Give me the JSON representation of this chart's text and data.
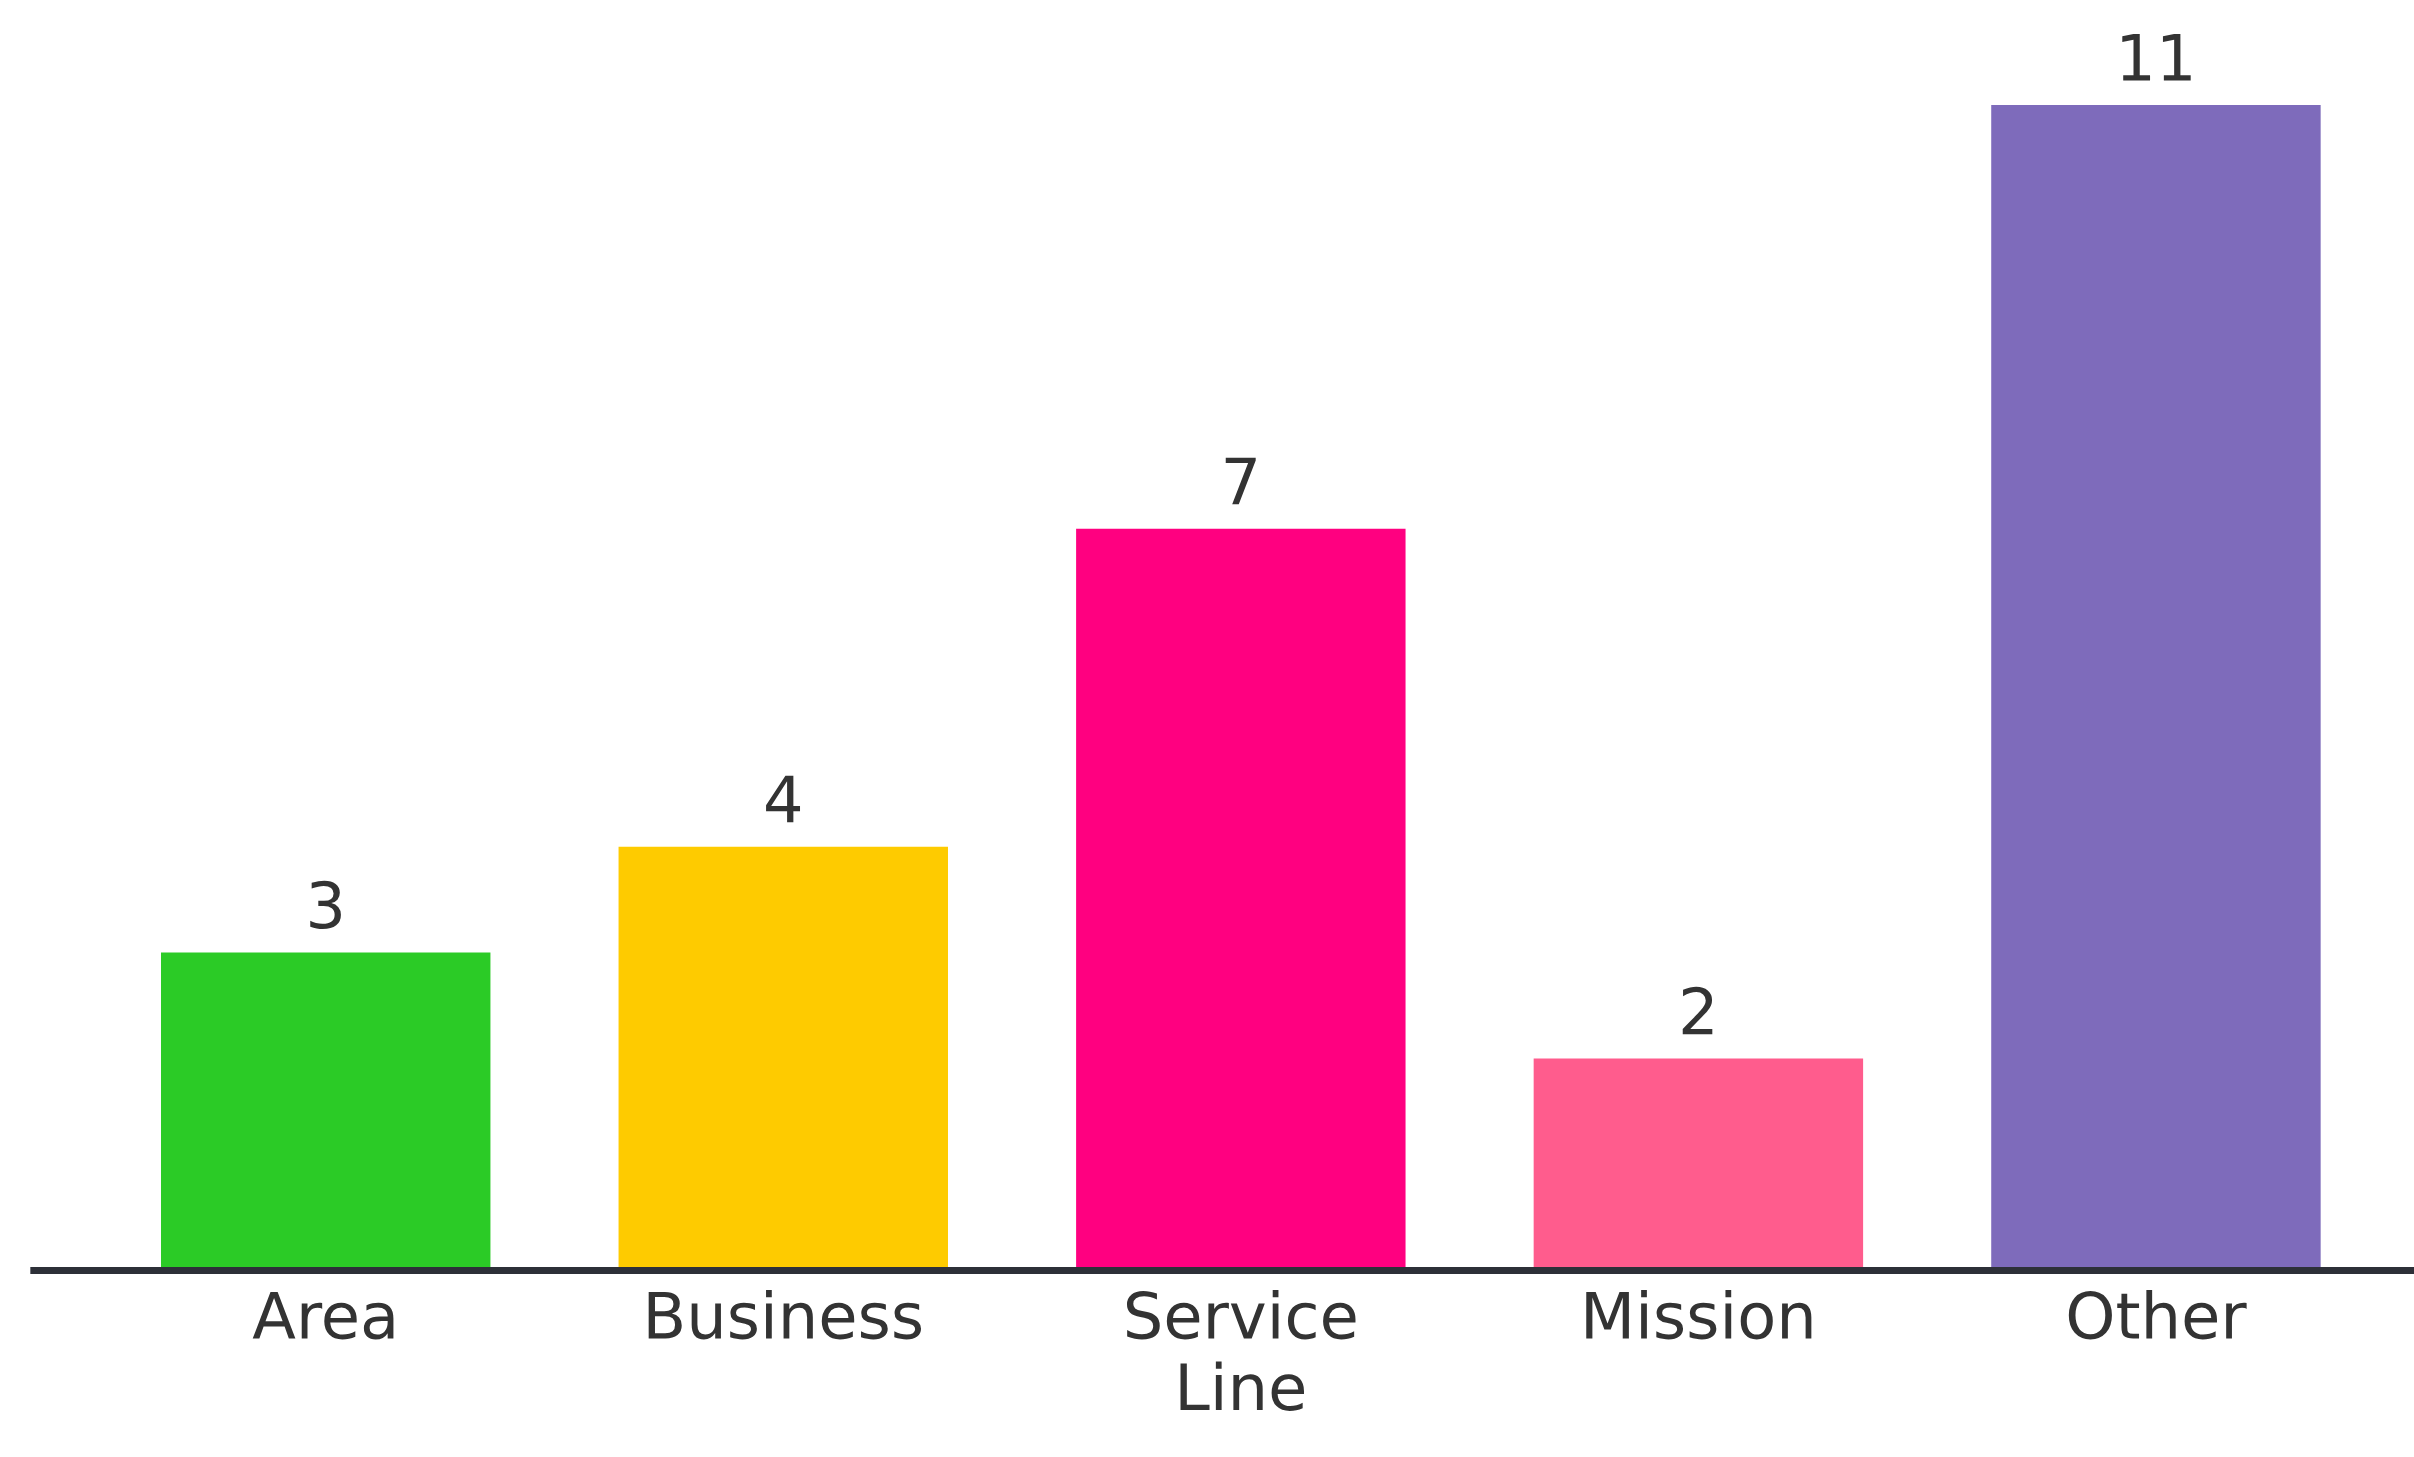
{
  "chart_data": {
    "type": "bar",
    "categories": [
      "Area",
      "Business",
      "Service\nLine",
      "Mission",
      "Other"
    ],
    "values": [
      3,
      4,
      7,
      2,
      11
    ],
    "colors": [
      "#2bcb26",
      "#fecb00",
      "#ff0080",
      "#ff5c8d",
      "#7e6bbb"
    ],
    "data_labels": true,
    "grid": false,
    "legend": false
  }
}
